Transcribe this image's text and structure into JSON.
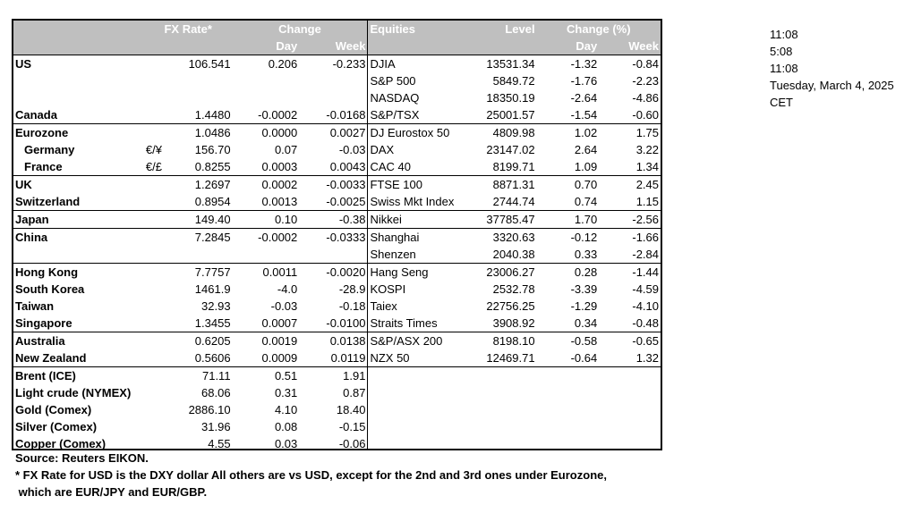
{
  "header": {
    "fx_rate": "FX Rate*",
    "change": "Change",
    "day": "Day",
    "week": "Week",
    "equities": "Equities",
    "level": "Level",
    "change_pct": "Change (%)",
    "eq_day": "Day",
    "eq_week": "Week"
  },
  "rows": [
    {
      "name": "US",
      "sym": "",
      "fx": "106.541",
      "day": "0.206",
      "week": "-0.233",
      "eq": "DJIA",
      "level": "13531.34",
      "eday": "-1.32",
      "eweek": "-0.84"
    },
    {
      "name": "",
      "sym": "",
      "fx": "",
      "day": "",
      "week": "",
      "eq": "S&P 500",
      "level": "5849.72",
      "eday": "-1.76",
      "eweek": "-2.23"
    },
    {
      "name": "",
      "sym": "",
      "fx": "",
      "day": "",
      "week": "",
      "eq": "NASDAQ",
      "level": "18350.19",
      "eday": "-2.64",
      "eweek": "-4.86"
    },
    {
      "name": "Canada",
      "sym": "",
      "fx": "1.4480",
      "day": "-0.0002",
      "week": "-0.0168",
      "eq": "S&P/TSX",
      "level": "25001.57",
      "eday": "-1.54",
      "eweek": "-0.60"
    },
    {
      "name": "Eurozone",
      "sym": "",
      "fx": "1.0486",
      "day": "0.0000",
      "week": "0.0027",
      "eq": "DJ Eurostox 50",
      "level": "4809.98",
      "eday": "1.02",
      "eweek": "1.75"
    },
    {
      "name": "Germany",
      "sym": "€/¥",
      "fx": "156.70",
      "day": "0.07",
      "week": "-0.03",
      "eq": "DAX",
      "level": "23147.02",
      "eday": "2.64",
      "eweek": "3.22"
    },
    {
      "name": "France",
      "sym": "€/£",
      "fx": "0.8255",
      "day": "0.0003",
      "week": "0.0043",
      "eq": "CAC 40",
      "level": "8199.71",
      "eday": "1.09",
      "eweek": "1.34"
    },
    {
      "name": "UK",
      "sym": "",
      "fx": "1.2697",
      "day": "0.0002",
      "week": "-0.0033",
      "eq": "FTSE 100",
      "level": "8871.31",
      "eday": "0.70",
      "eweek": "2.45"
    },
    {
      "name": "Switzerland",
      "sym": "",
      "fx": "0.8954",
      "day": "0.0013",
      "week": "-0.0025",
      "eq": "Swiss Mkt Index",
      "level": "2744.74",
      "eday": "0.74",
      "eweek": "1.15"
    },
    {
      "name": "Japan",
      "sym": "",
      "fx": "149.40",
      "day": "0.10",
      "week": "-0.38",
      "eq": "Nikkei",
      "level": "37785.47",
      "eday": "1.70",
      "eweek": "-2.56"
    },
    {
      "name": "China",
      "sym": "",
      "fx": "7.2845",
      "day": "-0.0002",
      "week": "-0.0333",
      "eq": "Shanghai",
      "level": "3320.63",
      "eday": "-0.12",
      "eweek": "-1.66"
    },
    {
      "name": "",
      "sym": "",
      "fx": "",
      "day": "",
      "week": "",
      "eq": "Shenzen",
      "level": "2040.38",
      "eday": "0.33",
      "eweek": "-2.84"
    },
    {
      "name": "Hong Kong",
      "sym": "",
      "fx": "7.7757",
      "day": "0.0011",
      "week": "-0.0020",
      "eq": "Hang Seng",
      "level": "23006.27",
      "eday": "0.28",
      "eweek": "-1.44"
    },
    {
      "name": "South Korea",
      "sym": "",
      "fx": "1461.9",
      "day": "-4.0",
      "week": "-28.9",
      "eq": "KOSPI",
      "level": "2532.78",
      "eday": "-3.39",
      "eweek": "-4.59"
    },
    {
      "name": "Taiwan",
      "sym": "",
      "fx": "32.93",
      "day": "-0.03",
      "week": "-0.18",
      "eq": "Taiex",
      "level": "22756.25",
      "eday": "-1.29",
      "eweek": "-4.10"
    },
    {
      "name": "Singapore",
      "sym": "",
      "fx": "1.3455",
      "day": "0.0007",
      "week": "-0.0100",
      "eq": "Straits Times",
      "level": "3908.92",
      "eday": "0.34",
      "eweek": "-0.48"
    },
    {
      "name": "Australia",
      "sym": "",
      "fx": "0.6205",
      "day": "0.0019",
      "week": "0.0138",
      "eq": "S&P/ASX  200",
      "level": "8198.10",
      "eday": "-0.58",
      "eweek": "-0.65"
    },
    {
      "name": "New Zealand",
      "sym": "",
      "fx": "0.5606",
      "day": "0.0009",
      "week": "0.0119",
      "eq": "NZX 50",
      "level": "12469.71",
      "eday": "-0.64",
      "eweek": "1.32"
    },
    {
      "name": "Brent (ICE)",
      "sym": "",
      "fx": "71.11",
      "day": "0.51",
      "week": "1.91",
      "eq": "",
      "level": "",
      "eday": "",
      "eweek": ""
    },
    {
      "name": "Light crude (NYMEX)",
      "sym": "",
      "fx": "68.06",
      "day": "0.31",
      "week": "0.87",
      "eq": "",
      "level": "",
      "eday": "",
      "eweek": ""
    },
    {
      "name": "Gold (Comex)",
      "sym": "",
      "fx": "2886.10",
      "day": "4.10",
      "week": "18.40",
      "eq": "",
      "level": "",
      "eday": "",
      "eweek": ""
    },
    {
      "name": "Silver (Comex)",
      "sym": "",
      "fx": "31.96",
      "day": "0.08",
      "week": "-0.15",
      "eq": "",
      "level": "",
      "eday": "",
      "eweek": ""
    },
    {
      "name": "Copper (Comex)",
      "sym": "",
      "fx": "4.55",
      "day": "0.03",
      "week": "-0.06",
      "eq": "",
      "level": "",
      "eday": "",
      "eweek": ""
    }
  ],
  "footer": {
    "source": "Source:  Reuters EIKON.",
    "note1": "* FX Rate for USD is the DXY dollar  All others are vs USD, except for the 2nd and 3rd ones under Eurozone,",
    "note2": " which are EUR/JPY and EUR/GBP."
  },
  "side": {
    "time1": "11:08",
    "time2": "5:08",
    "time3": "11:08",
    "date": "Tuesday, March 4, 2025",
    "tz": "CET"
  }
}
